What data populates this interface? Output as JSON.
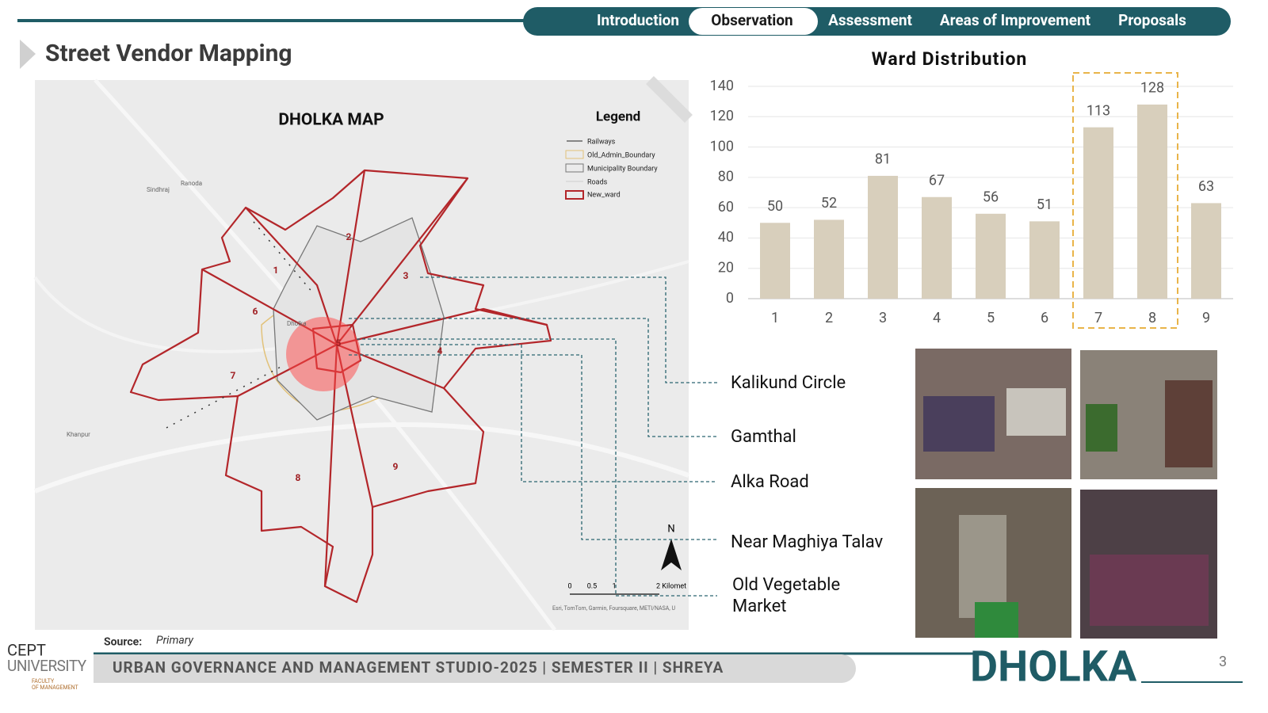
{
  "nav": [
    "Introduction",
    "Observation",
    "Assessment",
    "Areas of Improvement",
    "Proposals"
  ],
  "page_title": "Street Vendor Mapping",
  "map": {
    "title": "DHOLKA MAP",
    "legend_title": "Legend",
    "legend": [
      "Railways",
      "Old_Admin_Boundary",
      "Municipality Boundary",
      "Roads",
      "New_ward"
    ],
    "places": [
      "Sindhraj",
      "Ranoda",
      "Khanpur",
      "Dholka"
    ],
    "wards": [
      "1",
      "2",
      "3",
      "4",
      "5",
      "6",
      "7",
      "8",
      "9"
    ],
    "north": "N",
    "scale": [
      "0",
      "0.5",
      "1",
      "2 Kilomet"
    ],
    "attribution": "Esri, TomTom, Garmin, Foursquare, METI/NASA, U"
  },
  "locations": [
    [
      "Kalikund Circle"
    ],
    [
      "Gamthal"
    ],
    [
      "Alka Road"
    ],
    [
      "Near Maghiya Talav"
    ],
    [
      "Old Vegetable",
      "Market"
    ]
  ],
  "source_label": "Source:",
  "source": "Primary",
  "chart_data": {
    "type": "bar",
    "title": "Ward Distribution",
    "categories": [
      "1",
      "2",
      "3",
      "4",
      "5",
      "6",
      "7",
      "8",
      "9"
    ],
    "values": [
      50,
      52,
      81,
      67,
      56,
      51,
      113,
      128,
      63
    ],
    "color": "#d8cfbc",
    "ylim": [
      0,
      140
    ],
    "yticks": [
      0,
      20,
      40,
      60,
      80,
      100,
      120,
      140
    ],
    "grid": true,
    "highlight": [
      "7",
      "8"
    ],
    "highlight_color": "#e9b449"
  },
  "footer": {
    "logo": [
      "CEPT",
      "UNIVERSITY",
      "FACULTY",
      "OF MANAGEMENT"
    ],
    "studio": "URBAN GOVERNANCE AND MANAGEMENT STUDIO-2025 | SEMESTER II | SHREYA",
    "brand": "DHOLKA",
    "page": "3"
  }
}
